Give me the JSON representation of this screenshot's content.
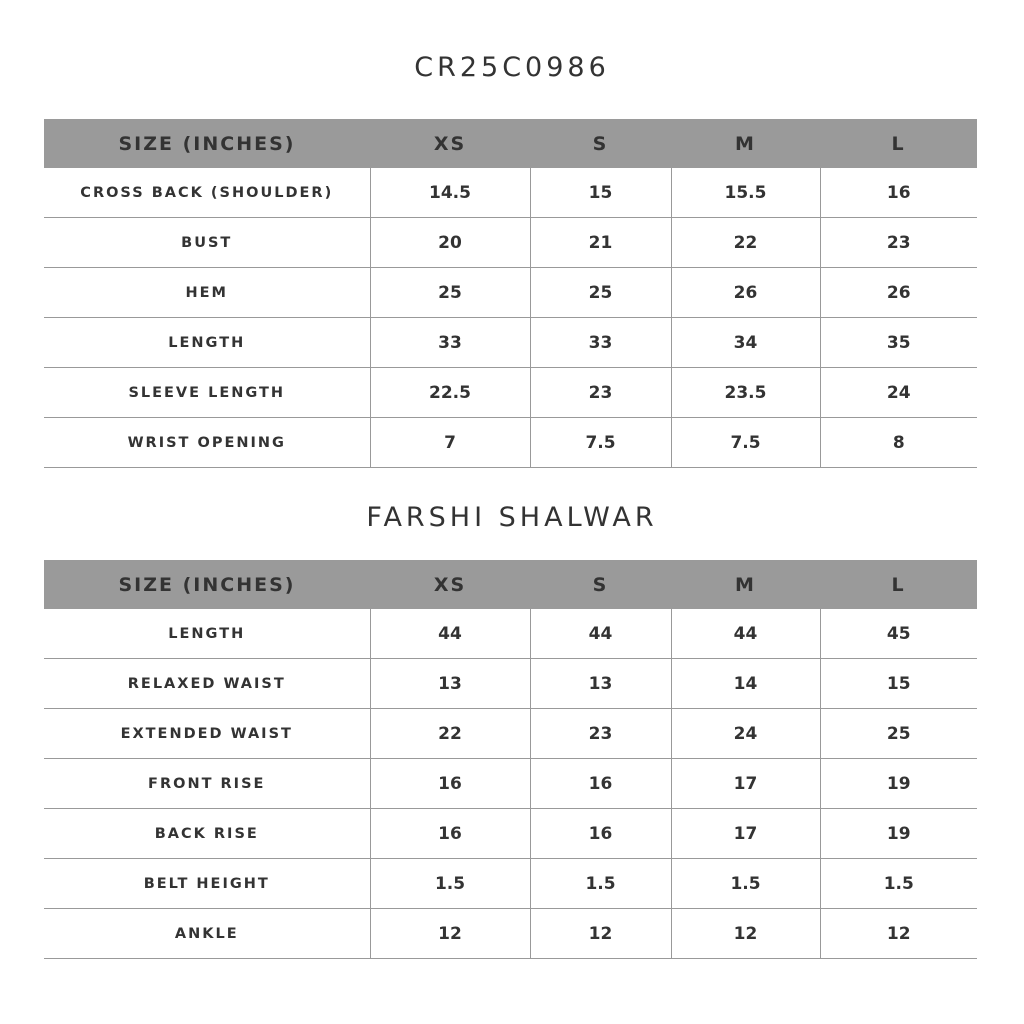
{
  "tables": [
    {
      "title": "CR25C0986",
      "headers": [
        "SIZE (INCHES)",
        "XS",
        "S",
        "M",
        "L"
      ],
      "rows": [
        [
          "CROSS BACK (SHOULDER)",
          "14.5",
          "15",
          "15.5",
          "16"
        ],
        [
          "BUST",
          "20",
          "21",
          "22",
          "23"
        ],
        [
          "HEM",
          "25",
          "25",
          "26",
          "26"
        ],
        [
          "LENGTH",
          "33",
          "33",
          "34",
          "35"
        ],
        [
          "SLEEVE LENGTH",
          "22.5",
          "23",
          "23.5",
          "24"
        ],
        [
          "WRIST OPENING",
          "7",
          "7.5",
          "7.5",
          "8"
        ]
      ]
    },
    {
      "title": "FARSHI SHALWAR",
      "headers": [
        "SIZE (INCHES)",
        "XS",
        "S",
        "M",
        "L"
      ],
      "rows": [
        [
          "LENGTH",
          "44",
          "44",
          "44",
          "45"
        ],
        [
          "RELAXED WAIST",
          "13",
          "13",
          "14",
          "15"
        ],
        [
          "EXTENDED WAIST",
          "22",
          "23",
          "24",
          "25"
        ],
        [
          "FRONT RISE",
          "16",
          "16",
          "17",
          "19"
        ],
        [
          "BACK RISE",
          "16",
          "16",
          "17",
          "19"
        ],
        [
          "BELT HEIGHT",
          "1.5",
          "1.5",
          "1.5",
          "1.5"
        ],
        [
          "ANKLE",
          "12",
          "12",
          "12",
          "12"
        ]
      ]
    }
  ],
  "colors": {
    "header_bg": "#9a9a9a",
    "text": "#333333",
    "rule": "#999999"
  }
}
